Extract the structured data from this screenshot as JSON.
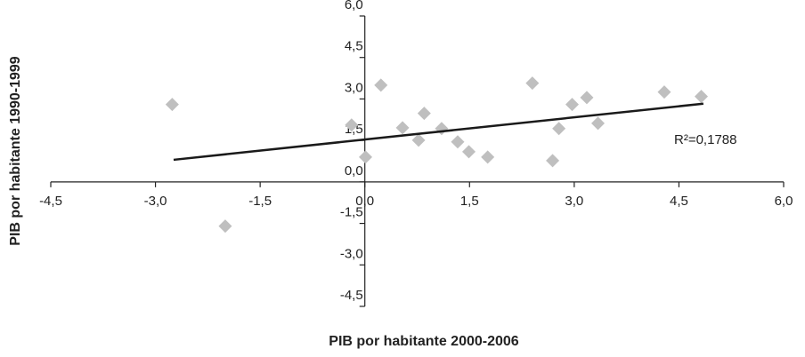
{
  "chart_data": {
    "type": "scatter",
    "x_label": "PIB por habitante 2000-2006",
    "y_label": "PIB por habitante 1990-1999",
    "annotation": "R²=0,1788",
    "color": "#bfbfbf",
    "x": [
      -2.76,
      -2.0,
      -0.19,
      0.01,
      0.23,
      0.54,
      0.77,
      0.85,
      1.1,
      1.33,
      1.49,
      1.76,
      2.4,
      2.69,
      2.78,
      2.97,
      3.18,
      3.34,
      4.29,
      4.82
    ],
    "values": [
      2.8,
      -1.6,
      2.06,
      0.9,
      3.5,
      1.96,
      1.51,
      2.48,
      1.93,
      1.45,
      1.09,
      0.9,
      3.57,
      0.77,
      1.93,
      2.8,
      3.05,
      2.12,
      3.25,
      3.09
    ],
    "trendline": {
      "x": [
        -2.74,
        4.85
      ],
      "values": [
        0.8,
        2.83
      ],
      "color": "#1a1a1a"
    },
    "xlim": [
      -4.5,
      6.0
    ],
    "ylim": [
      -4.5,
      6.0
    ],
    "xticks": [
      {
        "value": -4.5,
        "label": "-4,5"
      },
      {
        "value": -3.0,
        "label": "-3,0"
      },
      {
        "value": -1.5,
        "label": "-1,5"
      },
      {
        "value": 0.0,
        "label": "0,0"
      },
      {
        "value": 1.5,
        "label": "1,5"
      },
      {
        "value": 3.0,
        "label": "3,0"
      },
      {
        "value": 4.5,
        "label": "4,5"
      },
      {
        "value": 6.0,
        "label": "6,0"
      }
    ],
    "yticks": [
      {
        "value": -4.5,
        "label": "-4,5"
      },
      {
        "value": -3.0,
        "label": "-3,0"
      },
      {
        "value": -1.5,
        "label": "-1,5"
      },
      {
        "value": 0.0,
        "label": "0,0"
      },
      {
        "value": 1.5,
        "label": "1,5"
      },
      {
        "value": 3.0,
        "label": "3,0"
      },
      {
        "value": 4.5,
        "label": "4,5"
      },
      {
        "value": 6.0,
        "label": "6,0"
      }
    ]
  }
}
